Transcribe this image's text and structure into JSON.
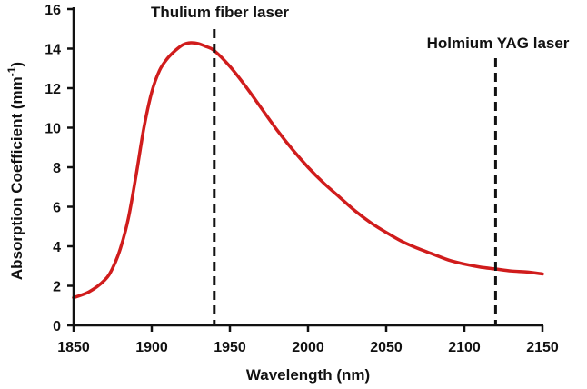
{
  "chart_data": {
    "type": "line",
    "title": "",
    "xlabel": "Wavelength (nm)",
    "ylabel": "Absorption Coefficient (mm",
    "ylabel_superscript": "-1",
    "ylabel_suffix": ")",
    "xlim": [
      1850,
      2150
    ],
    "ylim": [
      0,
      16
    ],
    "xticks": [
      1850,
      1900,
      1950,
      2000,
      2050,
      2100,
      2150
    ],
    "yticks": [
      0,
      2,
      4,
      6,
      8,
      10,
      12,
      14,
      16
    ],
    "grid": false,
    "colors": {
      "series": "#d01c1c",
      "axis": "#111111",
      "marker_lines": "#111111"
    },
    "series": [
      {
        "x": [
          1850,
          1860,
          1870,
          1875,
          1880,
          1885,
          1890,
          1895,
          1900,
          1905,
          1910,
          1915,
          1920,
          1925,
          1930,
          1935,
          1940,
          1950,
          1960,
          1970,
          1980,
          1990,
          2000,
          2010,
          2020,
          2030,
          2040,
          2050,
          2060,
          2070,
          2080,
          2090,
          2100,
          2110,
          2120,
          2130,
          2140,
          2150
        ],
        "y": [
          1.4,
          1.7,
          2.3,
          2.9,
          3.9,
          5.4,
          7.6,
          10.0,
          11.8,
          12.9,
          13.5,
          13.9,
          14.2,
          14.3,
          14.25,
          14.1,
          13.9,
          13.1,
          12.1,
          11.0,
          9.9,
          8.9,
          8.0,
          7.2,
          6.5,
          5.8,
          5.2,
          4.7,
          4.25,
          3.9,
          3.6,
          3.3,
          3.1,
          2.95,
          2.85,
          2.75,
          2.7,
          2.6
        ]
      }
    ],
    "annotations": [
      {
        "label": "Thulium fiber laser",
        "x": 1940
      },
      {
        "label": "Holmium YAG laser",
        "x": 2120
      }
    ]
  }
}
